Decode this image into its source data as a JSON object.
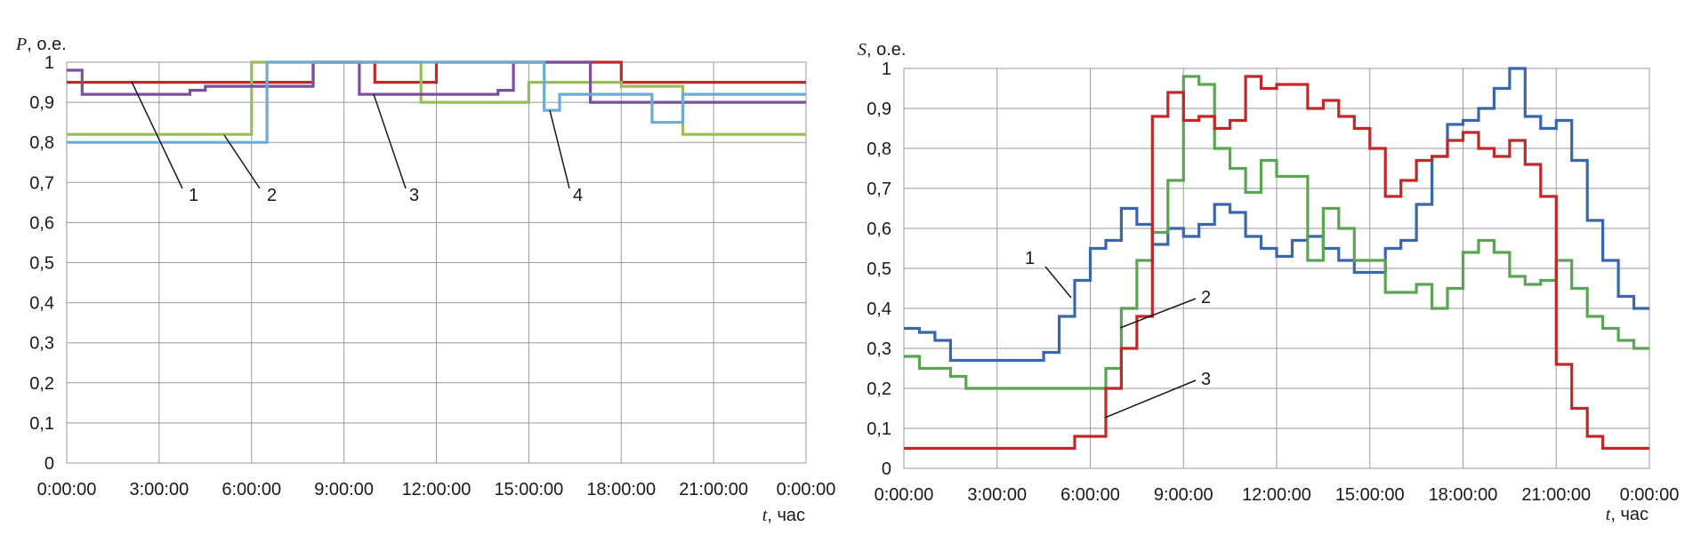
{
  "chart_data": [
    {
      "type": "line",
      "step": true,
      "ylabel": {
        "symbol": "P",
        "unit": ", о.е."
      },
      "xlabel": {
        "symbol": "t",
        "unit": ", час"
      },
      "ylim": [
        0,
        1
      ],
      "xlim": [
        0,
        24
      ],
      "grid": true,
      "legend": "none",
      "y_ticks": [
        "0",
        "0,1",
        "0,2",
        "0,3",
        "0,4",
        "0,5",
        "0,6",
        "0,7",
        "0,8",
        "0,9",
        "1"
      ],
      "x_ticks": [
        "0:00:00",
        "3:00:00",
        "6:00:00",
        "9:00:00",
        "12:00:00",
        "15:00:00",
        "18:00:00",
        "21:00:00",
        "0:00:00"
      ],
      "series": [
        {
          "label": "1",
          "color": "#c0282a",
          "x": [
            0,
            8,
            10,
            12,
            16,
            17,
            18,
            24
          ],
          "y": [
            0.95,
            1.0,
            0.95,
            1.0,
            1.0,
            1.0,
            0.95,
            0.95
          ]
        },
        {
          "label": "2",
          "color": "#9bbb59",
          "x": [
            0,
            6,
            11.5,
            15,
            17,
            18,
            20,
            24
          ],
          "y": [
            0.82,
            1.0,
            0.9,
            0.95,
            0.95,
            0.94,
            0.82,
            0.82
          ]
        },
        {
          "label": "3",
          "color": "#7b4f9e",
          "x": [
            0,
            0.5,
            4,
            4.5,
            8,
            9.5,
            14,
            14.5,
            17,
            24
          ],
          "y": [
            0.98,
            0.92,
            0.93,
            0.94,
            1.0,
            0.92,
            0.93,
            1.0,
            0.9,
            0.9
          ]
        },
        {
          "label": "4",
          "color": "#6bacd6",
          "x": [
            0,
            6.5,
            15.5,
            16,
            19,
            20,
            24
          ],
          "y": [
            0.8,
            1.0,
            0.88,
            0.92,
            0.85,
            0.92,
            0.92
          ]
        }
      ],
      "annotations": [
        {
          "text": "1",
          "series": "1"
        },
        {
          "text": "2",
          "series": "2"
        },
        {
          "text": "3",
          "series": "3"
        },
        {
          "text": "4",
          "series": "4"
        }
      ]
    },
    {
      "type": "line",
      "step": true,
      "ylabel": {
        "symbol": "S",
        "unit": ", о.е."
      },
      "xlabel": {
        "symbol": "t",
        "unit": ", час"
      },
      "ylim": [
        0,
        1
      ],
      "xlim": [
        0,
        24
      ],
      "grid": true,
      "legend": "none",
      "y_ticks": [
        "0",
        "0,1",
        "0,2",
        "0,3",
        "0,4",
        "0,5",
        "0,6",
        "0,7",
        "0,8",
        "0,9",
        "1"
      ],
      "x_ticks": [
        "0:00:00",
        "3:00:00",
        "6:00:00",
        "9:00:00",
        "12:00:00",
        "15:00:00",
        "18:00:00",
        "21:00:00",
        "0:00:00"
      ],
      "series": [
        {
          "label": "1",
          "color": "#3a66ae",
          "x": [
            0,
            0.5,
            1,
            1.5,
            2,
            4.5,
            5,
            5.5,
            6,
            6.5,
            7,
            7.5,
            8,
            8.5,
            9,
            9.5,
            10,
            10.5,
            11,
            11.5,
            12,
            12.5,
            13,
            13.5,
            14,
            14.5,
            15,
            15.5,
            16,
            16.5,
            17,
            17.5,
            18,
            18.5,
            19,
            19.5,
            20,
            20.5,
            21,
            21.5,
            22,
            22.5,
            23,
            23.5,
            24
          ],
          "y": [
            0.35,
            0.34,
            0.32,
            0.27,
            0.27,
            0.29,
            0.38,
            0.47,
            0.55,
            0.57,
            0.65,
            0.61,
            0.56,
            0.6,
            0.58,
            0.61,
            0.66,
            0.64,
            0.58,
            0.55,
            0.53,
            0.57,
            0.58,
            0.55,
            0.52,
            0.49,
            0.49,
            0.55,
            0.57,
            0.66,
            0.78,
            0.86,
            0.87,
            0.9,
            0.95,
            1.0,
            0.88,
            0.85,
            0.87,
            0.77,
            0.62,
            0.52,
            0.43,
            0.4,
            0.4
          ]
        },
        {
          "label": "2",
          "color": "#5aa454",
          "x": [
            0,
            0.5,
            1.5,
            2,
            6,
            6.5,
            7,
            7.5,
            8,
            8.5,
            9,
            9.5,
            10,
            10.5,
            11,
            11.5,
            12,
            12.5,
            13,
            13.5,
            14,
            14.5,
            15,
            15.5,
            16,
            16.5,
            17,
            17.5,
            18,
            18.5,
            19,
            19.5,
            20,
            20.5,
            21,
            21.5,
            22,
            22.5,
            23,
            23.5,
            24
          ],
          "y": [
            0.28,
            0.25,
            0.23,
            0.2,
            0.2,
            0.25,
            0.4,
            0.52,
            0.59,
            0.72,
            0.98,
            0.96,
            0.8,
            0.75,
            0.69,
            0.77,
            0.73,
            0.73,
            0.52,
            0.65,
            0.6,
            0.52,
            0.52,
            0.44,
            0.44,
            0.46,
            0.4,
            0.45,
            0.54,
            0.57,
            0.54,
            0.48,
            0.46,
            0.47,
            0.52,
            0.45,
            0.38,
            0.35,
            0.32,
            0.3,
            0.3
          ]
        },
        {
          "label": "3",
          "color": "#c0282a",
          "x": [
            0,
            5,
            5.5,
            6,
            6.5,
            7,
            7.5,
            8,
            8.5,
            9,
            9.5,
            10,
            10.5,
            11,
            11.5,
            12,
            12.5,
            13,
            13.5,
            14,
            14.5,
            15,
            15.5,
            16,
            16.5,
            17,
            17.5,
            18,
            18.5,
            19,
            19.5,
            20,
            20.5,
            21,
            21.5,
            22,
            22.5,
            23,
            23.5,
            24
          ],
          "y": [
            0.05,
            0.05,
            0.08,
            0.08,
            0.2,
            0.3,
            0.38,
            0.88,
            0.94,
            0.87,
            0.88,
            0.85,
            0.87,
            0.98,
            0.95,
            0.96,
            0.96,
            0.9,
            0.92,
            0.88,
            0.85,
            0.8,
            0.68,
            0.72,
            0.77,
            0.78,
            0.82,
            0.84,
            0.8,
            0.78,
            0.82,
            0.76,
            0.68,
            0.26,
            0.15,
            0.08,
            0.05,
            0.05,
            0.05,
            0.05
          ]
        }
      ],
      "annotations": [
        {
          "text": "1",
          "series": "1"
        },
        {
          "text": "2",
          "series": "2"
        },
        {
          "text": "3",
          "series": "3"
        }
      ]
    }
  ]
}
